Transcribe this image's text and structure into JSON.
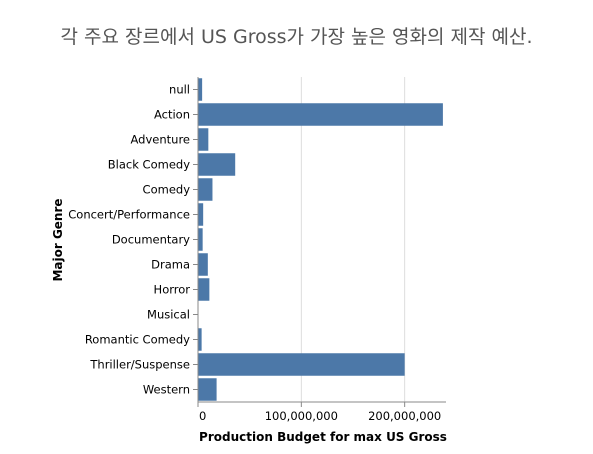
{
  "chart_data": {
    "type": "bar",
    "orientation": "horizontal",
    "title": "각 주요 장르에서 US Gross가 가장 높은 영화의 제작 예산.",
    "xlabel": "Production Budget for max US Gross",
    "ylabel": "Major Genre",
    "categories": [
      "null",
      "Action",
      "Adventure",
      "Black Comedy",
      "Comedy",
      "Concert/Performance",
      "Documentary",
      "Drama",
      "Horror",
      "Musical",
      "Romantic Comedy",
      "Thriller/Suspense",
      "Western"
    ],
    "values": [
      4000000,
      237000000,
      10000000,
      36000000,
      14000000,
      5000000,
      4500000,
      9500000,
      11000000,
      0,
      3500000,
      200000000,
      18000000
    ],
    "xlim": [
      0,
      240000000
    ],
    "xticks": [
      0,
      100000000,
      200000000
    ],
    "xtick_labels": [
      "0",
      "100,000,000",
      "200,000,000"
    ],
    "bar_color": "#4c78a8",
    "grid": true
  }
}
